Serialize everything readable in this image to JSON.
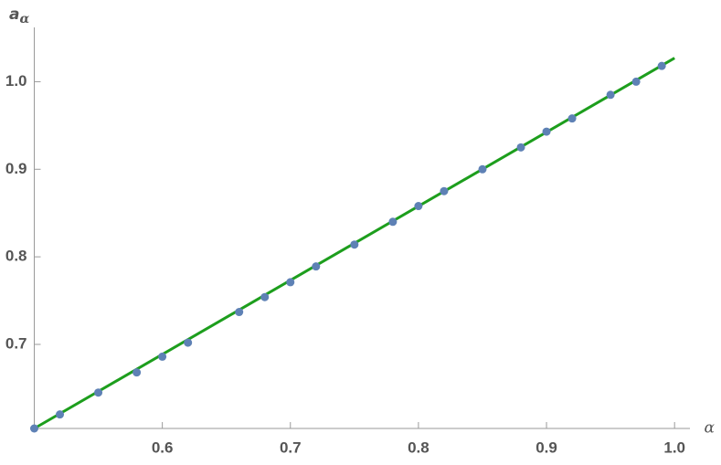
{
  "chart_data": {
    "type": "scatter",
    "x_label": "α",
    "y_label": [
      "a",
      "α"
    ],
    "xlim": [
      0.5,
      1.012
    ],
    "ylim": [
      0.604,
      1.062
    ],
    "xticks": [
      0.6,
      0.7,
      0.8,
      0.9,
      {
        "value": 1,
        "label": "1.0"
      }
    ],
    "yticks": [
      0.7,
      0.8,
      0.9,
      {
        "value": 1,
        "label": "1.0"
      }
    ],
    "series": [
      {
        "type": "line",
        "color": "#1d9e1d",
        "x": [
          0.5,
          1.0
        ],
        "values": [
          0.604,
          1.027
        ]
      },
      {
        "type": "scatter",
        "color": "#5e81b5",
        "x": [
          0.5,
          0.52,
          0.55,
          0.58,
          0.6,
          0.62,
          0.66,
          0.68,
          0.7,
          0.72,
          0.75,
          0.78,
          0.8,
          0.82,
          0.85,
          0.88,
          0.9,
          0.92,
          0.95,
          0.97,
          0.99
        ],
        "values": [
          0.604,
          0.62,
          0.645,
          0.668,
          0.686,
          0.702,
          0.737,
          0.754,
          0.771,
          0.789,
          0.814,
          0.84,
          0.858,
          0.875,
          0.9,
          0.925,
          0.943,
          0.958,
          0.985,
          1.0,
          1.018
        ]
      }
    ]
  }
}
